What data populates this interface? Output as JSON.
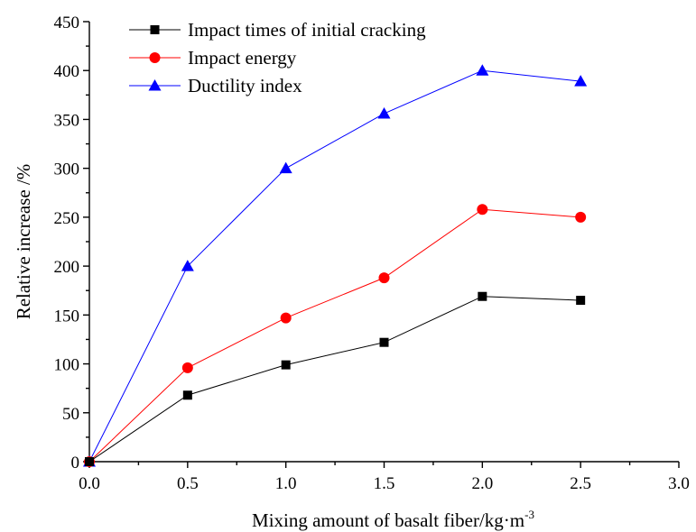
{
  "chart_data": {
    "type": "line",
    "title": "",
    "xlabel": "Mixing amount of basalt fiber/kg·m",
    "xlabel_superscript": "-3",
    "ylabel": "Relative increase /%",
    "xlim": [
      0.0,
      3.0
    ],
    "ylim": [
      0,
      450
    ],
    "x_ticks": [
      "0.0",
      "0.5",
      "1.0",
      "1.5",
      "2.0",
      "2.5",
      "3.0"
    ],
    "y_ticks": [
      "0",
      "50",
      "100",
      "150",
      "200",
      "250",
      "300",
      "350",
      "400",
      "450"
    ],
    "x_tick_values": [
      0.0,
      0.5,
      1.0,
      1.5,
      2.0,
      2.5,
      3.0
    ],
    "y_tick_values": [
      0,
      50,
      100,
      150,
      200,
      250,
      300,
      350,
      400,
      450
    ],
    "grid": false,
    "legend_position": "top-left",
    "x": [
      0.0,
      0.5,
      1.0,
      1.5,
      2.0,
      2.5
    ],
    "series": [
      {
        "name": "Impact times of initial cracking",
        "values": [
          0,
          68,
          99,
          122,
          169,
          165
        ],
        "color": "#000000",
        "marker": "square"
      },
      {
        "name": "Impact energy",
        "values": [
          0,
          96,
          147,
          188,
          258,
          250
        ],
        "color": "#ff0000",
        "marker": "circle"
      },
      {
        "name": "Ductility index",
        "values": [
          0,
          200,
          300,
          356,
          400,
          389
        ],
        "color": "#0000ff",
        "marker": "triangle"
      }
    ]
  }
}
